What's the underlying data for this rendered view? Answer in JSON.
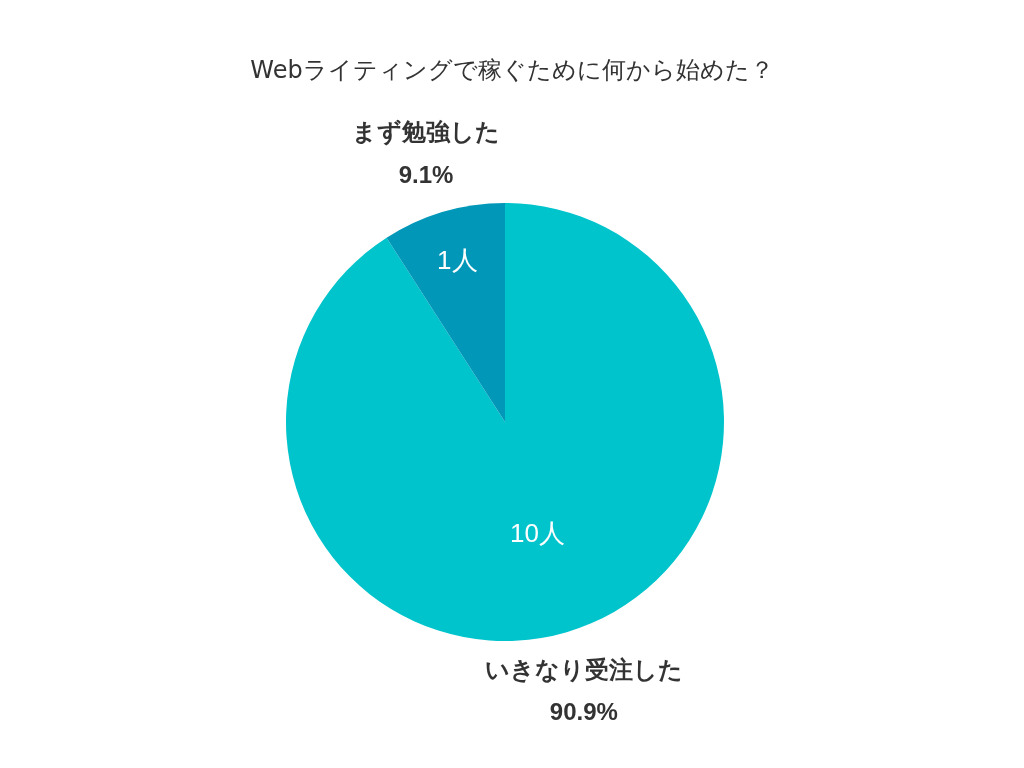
{
  "chart_data": {
    "type": "pie",
    "title": "Webライティングで稼ぐために何から始めた？",
    "categories": [
      "いきなり受注した",
      "まず勉強した"
    ],
    "values": [
      10,
      1
    ],
    "colors": [
      "#00c4cc",
      "#0097b9"
    ],
    "value_labels": [
      "10人",
      "1人"
    ],
    "annotations": [
      "90.9%",
      "9.1%"
    ]
  }
}
